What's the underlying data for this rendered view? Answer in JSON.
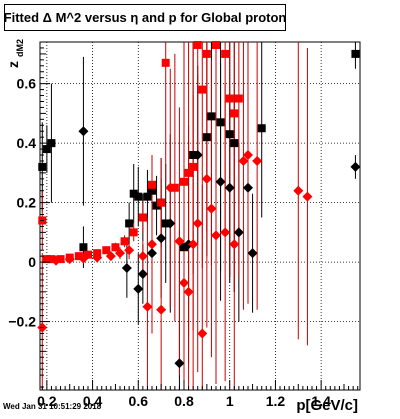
{
  "title": "Fitted Δ M^2 versus η and p for Global proton",
  "footer_timestamp": "Wed Jan 31 10:51:29 2018",
  "chart_data": {
    "type": "scatter",
    "title": "Fitted Δ M^2 versus η and p for Global proton",
    "xlabel": "p[GeV/c]",
    "ylabel": "z_{dM2}",
    "ylabel_main": "z",
    "ylabel_sub": "dM2",
    "xlim": [
      0.17,
      1.57
    ],
    "ylim": [
      -0.43,
      0.74
    ],
    "xticks": [
      0.2,
      0.4,
      0.6,
      0.8,
      1.0,
      1.2,
      1.4
    ],
    "xtick_labels": [
      "0.2",
      "0.4",
      "0.6",
      "0.8",
      "1",
      "1.2",
      "1.4"
    ],
    "yticks": [
      -0.2,
      0,
      0.2,
      0.4,
      0.6
    ],
    "ytick_labels": [
      "−0.2",
      "0",
      "0.2",
      "0.4",
      "0.6"
    ],
    "grid": true,
    "colors": {
      "red": "#ff0000",
      "darkred": "#cc0000",
      "black": "#000000"
    },
    "series": [
      {
        "color": "#000000",
        "marker": "square",
        "points": [
          {
            "x": 0.18,
            "y": 0.32,
            "ey": 0.15
          },
          {
            "x": 0.2,
            "y": 0.38,
            "ey": 0.08
          },
          {
            "x": 0.22,
            "y": 0.4,
            "ey": 0.2
          },
          {
            "x": 0.36,
            "y": 0.05,
            "ey": 0.07
          },
          {
            "x": 0.56,
            "y": 0.13,
            "ey": 0.07
          },
          {
            "x": 0.58,
            "y": 0.23,
            "ey": 0.1
          },
          {
            "x": 0.6,
            "y": 0.22,
            "ey": 0.1
          },
          {
            "x": 0.62,
            "y": 0.15,
            "ey": 0.08
          },
          {
            "x": 0.64,
            "y": 0.22,
            "ey": 0.09
          },
          {
            "x": 0.66,
            "y": 0.24,
            "ey": 0.09
          },
          {
            "x": 0.68,
            "y": 0.19,
            "ey": 0.1
          },
          {
            "x": 0.7,
            "y": 0.2,
            "ey": 0.15
          },
          {
            "x": 0.72,
            "y": 0.13,
            "ey": 0.2
          },
          {
            "x": 0.8,
            "y": 0.05,
            "ey": 0.35
          },
          {
            "x": 0.84,
            "y": 0.36,
            "ey": 0.4
          },
          {
            "x": 0.9,
            "y": 0.42,
            "ey": 0.4
          },
          {
            "x": 0.92,
            "y": 0.49,
            "ey": 0.5
          },
          {
            "x": 0.96,
            "y": 0.47,
            "ey": 0.5
          },
          {
            "x": 1.0,
            "y": 0.43,
            "ey": 0.5
          },
          {
            "x": 1.02,
            "y": 0.4,
            "ey": 0.5
          },
          {
            "x": 1.14,
            "y": 0.45,
            "ey": 0.3
          },
          {
            "x": 1.55,
            "y": 0.7,
            "ey": 0.05
          }
        ]
      },
      {
        "color": "#000000",
        "marker": "diamond",
        "points": [
          {
            "x": 0.36,
            "y": 0.44,
            "ey": 0.25
          },
          {
            "x": 0.55,
            "y": -0.02,
            "ey": 0.1
          },
          {
            "x": 0.6,
            "y": -0.09,
            "ey": 0.12
          },
          {
            "x": 0.62,
            "y": -0.04,
            "ey": 0.1
          },
          {
            "x": 0.66,
            "y": 0.03,
            "ey": 0.15
          },
          {
            "x": 0.7,
            "y": 0.08,
            "ey": 0.2
          },
          {
            "x": 0.74,
            "y": 0.13,
            "ey": 0.3
          },
          {
            "x": 0.78,
            "y": -0.34,
            "ey": 0.45
          },
          {
            "x": 0.82,
            "y": 0.06,
            "ey": 0.4
          },
          {
            "x": 0.86,
            "y": 0.36,
            "ey": 0.3
          },
          {
            "x": 0.96,
            "y": 0.27,
            "ey": 0.4
          },
          {
            "x": 1.0,
            "y": 0.25,
            "ey": 0.3
          },
          {
            "x": 1.04,
            "y": 0.1,
            "ey": 0.3
          },
          {
            "x": 1.08,
            "y": 0.25,
            "ey": 0.2
          },
          {
            "x": 1.1,
            "y": 0.03,
            "ey": 0.2
          },
          {
            "x": 1.55,
            "y": 0.32,
            "ey": 0.04
          }
        ]
      },
      {
        "color": "#ff0000",
        "marker": "square",
        "points": [
          {
            "x": 0.18,
            "y": 0.14,
            "ey": 0.1
          },
          {
            "x": 0.2,
            "y": 0.01,
            "ey": 0.01
          },
          {
            "x": 0.22,
            "y": 0.01,
            "ey": 0.01
          },
          {
            "x": 0.26,
            "y": 0.01,
            "ey": 0.01
          },
          {
            "x": 0.3,
            "y": 0.015,
            "ey": 0.01
          },
          {
            "x": 0.34,
            "y": 0.02,
            "ey": 0.01
          },
          {
            "x": 0.38,
            "y": 0.025,
            "ey": 0.01
          },
          {
            "x": 0.42,
            "y": 0.03,
            "ey": 0.01
          },
          {
            "x": 0.46,
            "y": 0.04,
            "ey": 0.01
          },
          {
            "x": 0.5,
            "y": 0.05,
            "ey": 0.015
          },
          {
            "x": 0.54,
            "y": 0.07,
            "ey": 0.02
          },
          {
            "x": 0.58,
            "y": 0.1,
            "ey": 0.03
          },
          {
            "x": 0.62,
            "y": 0.15,
            "ey": 0.05
          },
          {
            "x": 0.66,
            "y": 0.26,
            "ey": 0.1
          },
          {
            "x": 0.7,
            "y": 0.2,
            "ey": 0.15
          },
          {
            "x": 0.72,
            "y": 0.67,
            "ey": 0.4
          },
          {
            "x": 0.76,
            "y": 0.25,
            "ey": 0.45
          },
          {
            "x": 0.8,
            "y": 0.27,
            "ey": 0.55
          },
          {
            "x": 0.82,
            "y": 0.3,
            "ey": 0.55
          },
          {
            "x": 0.84,
            "y": 0.32,
            "ey": 0.55
          },
          {
            "x": 0.86,
            "y": 0.73,
            "ey": 0.6
          },
          {
            "x": 0.88,
            "y": 0.58,
            "ey": 0.6
          },
          {
            "x": 0.9,
            "y": 0.7,
            "ey": 0.6
          },
          {
            "x": 0.94,
            "y": 0.73,
            "ey": 0.6
          },
          {
            "x": 0.98,
            "y": 0.7,
            "ey": 0.6
          },
          {
            "x": 1.0,
            "y": 0.55,
            "ey": 0.6
          },
          {
            "x": 1.02,
            "y": 0.5,
            "ey": 0.6
          },
          {
            "x": 1.04,
            "y": 0.55,
            "ey": 0.6
          }
        ]
      },
      {
        "color": "#ff0000",
        "marker": "diamond",
        "points": [
          {
            "x": 0.18,
            "y": -0.22,
            "ey": 0.25
          },
          {
            "x": 0.24,
            "y": 0.005,
            "ey": 0.01
          },
          {
            "x": 0.3,
            "y": 0.01,
            "ey": 0.01
          },
          {
            "x": 0.36,
            "y": 0.012,
            "ey": 0.01
          },
          {
            "x": 0.42,
            "y": 0.015,
            "ey": 0.01
          },
          {
            "x": 0.48,
            "y": 0.02,
            "ey": 0.015
          },
          {
            "x": 0.52,
            "y": 0.03,
            "ey": 0.02
          },
          {
            "x": 0.56,
            "y": 0.04,
            "ey": 0.03
          },
          {
            "x": 0.62,
            "y": 0.02,
            "ey": 0.05
          },
          {
            "x": 0.64,
            "y": -0.15,
            "ey": 0.3
          },
          {
            "x": 0.66,
            "y": 0.06,
            "ey": 0.3
          },
          {
            "x": 0.7,
            "y": -0.16,
            "ey": 0.35
          },
          {
            "x": 0.74,
            "y": 0.25,
            "ey": 0.4
          },
          {
            "x": 0.78,
            "y": 0.07,
            "ey": 0.45
          },
          {
            "x": 0.8,
            "y": -0.07,
            "ey": 0.45
          },
          {
            "x": 0.82,
            "y": -0.1,
            "ey": 0.5
          },
          {
            "x": 0.84,
            "y": 0.06,
            "ey": 0.5
          },
          {
            "x": 0.86,
            "y": 0.13,
            "ey": 0.5
          },
          {
            "x": 0.88,
            "y": -0.24,
            "ey": 0.5
          },
          {
            "x": 0.9,
            "y": 0.28,
            "ey": 0.5
          },
          {
            "x": 0.92,
            "y": 0.18,
            "ey": 0.5
          },
          {
            "x": 0.94,
            "y": 0.09,
            "ey": 0.5
          },
          {
            "x": 0.98,
            "y": 0.1,
            "ey": 0.5
          },
          {
            "x": 1.02,
            "y": 0.06,
            "ey": 0.5
          },
          {
            "x": 1.06,
            "y": 0.34,
            "ey": 0.5
          },
          {
            "x": 1.08,
            "y": 0.36,
            "ey": 0.5
          },
          {
            "x": 1.12,
            "y": 0.34,
            "ey": 0.5
          },
          {
            "x": 1.3,
            "y": 0.24,
            "ey": 0.5
          },
          {
            "x": 1.34,
            "y": 0.22,
            "ey": 0.5
          }
        ]
      }
    ]
  }
}
